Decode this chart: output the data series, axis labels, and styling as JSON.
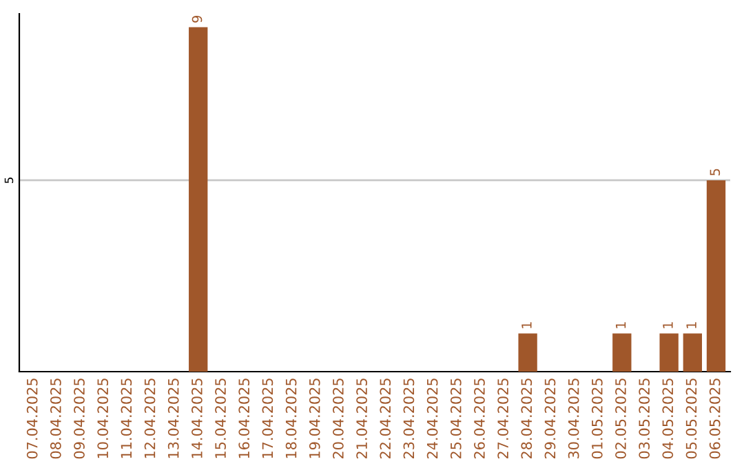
{
  "chart_data": {
    "type": "bar",
    "categories": [
      "07.04.2025",
      "08.04.2025",
      "09.04.2025",
      "10.04.2025",
      "11.04.2025",
      "12.04.2025",
      "13.04.2025",
      "14.04.2025",
      "15.04.2025",
      "16.04.2025",
      "17.04.2025",
      "18.04.2025",
      "19.04.2025",
      "20.04.2025",
      "21.04.2025",
      "22.04.2025",
      "23.04.2025",
      "24.04.2025",
      "25.04.2025",
      "26.04.2025",
      "27.04.2025",
      "28.04.2025",
      "29.04.2025",
      "30.04.2025",
      "01.05.2025",
      "02.05.2025",
      "03.05.2025",
      "04.05.2025",
      "05.05.2025",
      "06.05.2025"
    ],
    "values": [
      0,
      0,
      0,
      0,
      0,
      0,
      0,
      9,
      0,
      0,
      0,
      0,
      0,
      0,
      0,
      0,
      0,
      0,
      0,
      0,
      0,
      1,
      0,
      0,
      0,
      1,
      0,
      1,
      1,
      5
    ],
    "value_labels": [
      null,
      null,
      null,
      null,
      null,
      null,
      null,
      "9",
      null,
      null,
      null,
      null,
      null,
      null,
      null,
      null,
      null,
      null,
      null,
      null,
      null,
      "1",
      null,
      null,
      null,
      "1",
      null,
      "1",
      "1",
      "5"
    ],
    "color": "#a0572a",
    "ylim": [
      0,
      9.35
    ],
    "yticks": [
      5
    ],
    "grid": "y"
  }
}
